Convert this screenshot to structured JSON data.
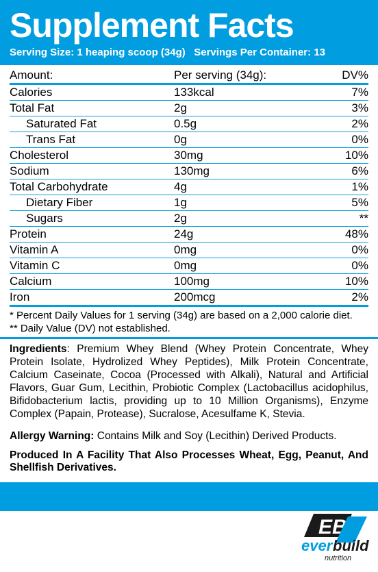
{
  "header": {
    "title": "Supplement Facts",
    "serving_size_label": "Serving Size:",
    "serving_size_value": "1 heaping scoop (34g)",
    "servings_per_label": "Servings Per Container:",
    "servings_per_value": "13"
  },
  "columns": {
    "name": "Amount:",
    "per": "Per serving (34g):",
    "dv": "DV%"
  },
  "rows": [
    {
      "name": "Calories",
      "per": "133kcal",
      "dv": "7%",
      "indent": false
    },
    {
      "name": "Total Fat",
      "per": "2g",
      "dv": "3%",
      "indent": false
    },
    {
      "name": "Saturated Fat",
      "per": "0.5g",
      "dv": "2%",
      "indent": true
    },
    {
      "name": "Trans Fat",
      "per": "0g",
      "dv": "0%",
      "indent": true
    },
    {
      "name": "Cholesterol",
      "per": "30mg",
      "dv": "10%",
      "indent": false
    },
    {
      "name": "Sodium",
      "per": "130mg",
      "dv": "6%",
      "indent": false
    },
    {
      "name": "Total Carbohydrate",
      "per": "4g",
      "dv": "1%",
      "indent": false
    },
    {
      "name": "Dietary Fiber",
      "per": "1g",
      "dv": "5%",
      "indent": true
    },
    {
      "name": "Sugars",
      "per": "2g",
      "dv": "**",
      "indent": true
    },
    {
      "name": "Protein",
      "per": "24g",
      "dv": "48%",
      "indent": false
    },
    {
      "name": "Vitamin A",
      "per": "0mg",
      "dv": "0%",
      "indent": false
    },
    {
      "name": "Vitamin C",
      "per": "0mg",
      "dv": "0%",
      "indent": false
    },
    {
      "name": "Calcium",
      "per": "100mg",
      "dv": "10%",
      "indent": false
    },
    {
      "name": "Iron",
      "per": "200mcg",
      "dv": "2%",
      "indent": false
    }
  ],
  "footnote1": "* Percent Daily Values for 1 serving (34g) are based on a 2,000 calorie diet.",
  "footnote2": "** Daily Value (DV) not established.",
  "ingredients_label": "Ingredients",
  "ingredients_text": ": Premium Whey Blend (Whey Protein Concentrate, Whey Protein Isolate, Hydrolized Whey Peptides), Milk Protein Concentrate, Calcium Caseinate, Cocoa (Processed with Alkali), Natural and Artificial Flavors, Guar Gum, Lecithin, Probiotic Complex (Lactobacillus acidophilus, Bifidobacterium lactis, providing up to 10 Million Organisms), Enzyme Complex (Papain, Protease), Sucralose, Acesulfame K, Stevia.",
  "allergy_label": "Allergy Warning:",
  "allergy_text": " Contains Milk and Soy (Lecithin) Derived Products.",
  "facility_text": "Produced In A Facility That Also Processes Wheat, Egg, Peanut, And Shellfish Derivatives.",
  "brand": {
    "mark": "EB",
    "word1": "ever",
    "word2": "build",
    "sub": "nutrition"
  },
  "colors": {
    "brand_blue": "#009de0",
    "text": "#000000",
    "white": "#ffffff"
  }
}
